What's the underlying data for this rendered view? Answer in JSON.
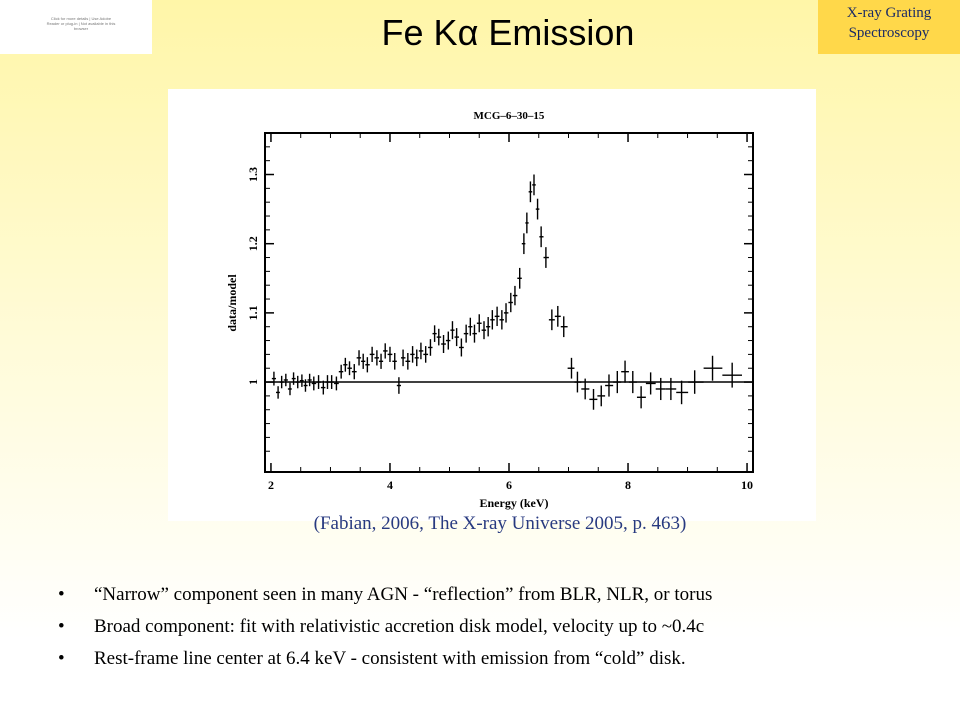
{
  "slide": {
    "title": "Fe Kα Emission",
    "corner_tag_line1": "X-ray Grating",
    "corner_tag_line2": "Spectroscopy",
    "logo_text": "Click for more details | Use Adobe Reader or plug-in | Not available in this browser",
    "citation": "(Fabian, 2006, The X-ray Universe 2005, p. 463)",
    "bullet_symbol": "•",
    "bullets": [
      "“Narrow” component seen in many AGN - “reflection” from BLR, NLR, or torus",
      "Broad component: fit with relativistic accretion disk model, velocity up to ~0.4c",
      "Rest-frame line center at 6.4 keV - consistent with emission from “cold” disk."
    ]
  },
  "chart_data": {
    "type": "scatter",
    "title": "MCG–6–30–15",
    "xlabel": "Energy (keV)",
    "ylabel": "data/model",
    "xlim": [
      1.9,
      10.1
    ],
    "ylim": [
      0.87,
      1.36
    ],
    "xticks": [
      2,
      4,
      6,
      8,
      10
    ],
    "yticks": [
      1,
      1.1,
      1.2,
      1.3
    ],
    "reference_line": 1.0,
    "colors": {
      "marks": "#000000",
      "frame": "#000000"
    },
    "series": [
      {
        "points": [
          {
            "x": 2.05,
            "y": 1.005,
            "ey": 0.01
          },
          {
            "x": 2.12,
            "y": 0.985,
            "ey": 0.009
          },
          {
            "x": 2.18,
            "y": 1.0,
            "ey": 0.009
          },
          {
            "x": 2.25,
            "y": 1.003,
            "ey": 0.009
          },
          {
            "x": 2.32,
            "y": 0.99,
            "ey": 0.009
          },
          {
            "x": 2.38,
            "y": 1.005,
            "ey": 0.009
          },
          {
            "x": 2.45,
            "y": 1.0,
            "ey": 0.009
          },
          {
            "x": 2.52,
            "y": 1.002,
            "ey": 0.009
          },
          {
            "x": 2.58,
            "y": 0.995,
            "ey": 0.009
          },
          {
            "x": 2.65,
            "y": 1.003,
            "ey": 0.009
          },
          {
            "x": 2.72,
            "y": 0.998,
            "ey": 0.01
          },
          {
            "x": 2.8,
            "y": 1.0,
            "ey": 0.01
          },
          {
            "x": 2.88,
            "y": 0.992,
            "ey": 0.01
          },
          {
            "x": 2.95,
            "y": 1.0,
            "ey": 0.01
          },
          {
            "x": 3.02,
            "y": 1.0,
            "ey": 0.01
          },
          {
            "x": 3.1,
            "y": 0.998,
            "ey": 0.01
          },
          {
            "x": 3.18,
            "y": 1.015,
            "ey": 0.01
          },
          {
            "x": 3.25,
            "y": 1.025,
            "ey": 0.01
          },
          {
            "x": 3.32,
            "y": 1.02,
            "ey": 0.01
          },
          {
            "x": 3.4,
            "y": 1.015,
            "ey": 0.011
          },
          {
            "x": 3.48,
            "y": 1.035,
            "ey": 0.011
          },
          {
            "x": 3.55,
            "y": 1.03,
            "ey": 0.011
          },
          {
            "x": 3.62,
            "y": 1.025,
            "ey": 0.011
          },
          {
            "x": 3.7,
            "y": 1.04,
            "ey": 0.011
          },
          {
            "x": 3.78,
            "y": 1.035,
            "ey": 0.011
          },
          {
            "x": 3.85,
            "y": 1.03,
            "ey": 0.011
          },
          {
            "x": 3.92,
            "y": 1.045,
            "ey": 0.011
          },
          {
            "x": 4.0,
            "y": 1.04,
            "ey": 0.011
          },
          {
            "x": 4.08,
            "y": 1.03,
            "ey": 0.012
          },
          {
            "x": 4.15,
            "y": 0.995,
            "ey": 0.012
          },
          {
            "x": 4.22,
            "y": 1.035,
            "ey": 0.012
          },
          {
            "x": 4.3,
            "y": 1.03,
            "ey": 0.012
          },
          {
            "x": 4.38,
            "y": 1.04,
            "ey": 0.012
          },
          {
            "x": 4.45,
            "y": 1.035,
            "ey": 0.012
          },
          {
            "x": 4.52,
            "y": 1.045,
            "ey": 0.012
          },
          {
            "x": 4.6,
            "y": 1.04,
            "ey": 0.012
          },
          {
            "x": 4.68,
            "y": 1.05,
            "ey": 0.012
          },
          {
            "x": 4.75,
            "y": 1.07,
            "ey": 0.012
          },
          {
            "x": 4.82,
            "y": 1.065,
            "ey": 0.012
          },
          {
            "x": 4.9,
            "y": 1.055,
            "ey": 0.013
          },
          {
            "x": 4.98,
            "y": 1.06,
            "ey": 0.013
          },
          {
            "x": 5.05,
            "y": 1.075,
            "ey": 0.013
          },
          {
            "x": 5.12,
            "y": 1.065,
            "ey": 0.013
          },
          {
            "x": 5.2,
            "y": 1.05,
            "ey": 0.013
          },
          {
            "x": 5.28,
            "y": 1.07,
            "ey": 0.013
          },
          {
            "x": 5.35,
            "y": 1.08,
            "ey": 0.013
          },
          {
            "x": 5.42,
            "y": 1.07,
            "ey": 0.013
          },
          {
            "x": 5.5,
            "y": 1.085,
            "ey": 0.013
          },
          {
            "x": 5.58,
            "y": 1.075,
            "ey": 0.013
          },
          {
            "x": 5.65,
            "y": 1.08,
            "ey": 0.014
          },
          {
            "x": 5.72,
            "y": 1.09,
            "ey": 0.014
          },
          {
            "x": 5.8,
            "y": 1.095,
            "ey": 0.014
          },
          {
            "x": 5.88,
            "y": 1.09,
            "ey": 0.014
          },
          {
            "x": 5.95,
            "y": 1.1,
            "ey": 0.014
          },
          {
            "x": 6.03,
            "y": 1.115,
            "ey": 0.014
          },
          {
            "x": 6.1,
            "y": 1.125,
            "ey": 0.014
          },
          {
            "x": 6.18,
            "y": 1.15,
            "ey": 0.015
          },
          {
            "x": 6.25,
            "y": 1.2,
            "ey": 0.015
          },
          {
            "x": 6.3,
            "y": 1.23,
            "ey": 0.015
          },
          {
            "x": 6.36,
            "y": 1.275,
            "ey": 0.015
          },
          {
            "x": 6.42,
            "y": 1.285,
            "ey": 0.015
          },
          {
            "x": 6.48,
            "y": 1.25,
            "ey": 0.015
          },
          {
            "x": 6.54,
            "y": 1.21,
            "ey": 0.015
          },
          {
            "x": 6.62,
            "y": 1.18,
            "ey": 0.015
          },
          {
            "x": 6.72,
            "y": 1.09,
            "ey": 0.015
          },
          {
            "x": 6.82,
            "y": 1.095,
            "ey": 0.015
          },
          {
            "x": 6.92,
            "y": 1.08,
            "ey": 0.015
          },
          {
            "x": 7.05,
            "y": 1.02,
            "ey": 0.015
          },
          {
            "x": 7.15,
            "y": 1.0,
            "ey": 0.015
          },
          {
            "x": 7.28,
            "y": 0.99,
            "ey": 0.015
          },
          {
            "x": 7.42,
            "y": 0.975,
            "ey": 0.015
          },
          {
            "x": 7.55,
            "y": 0.98,
            "ey": 0.015
          },
          {
            "x": 7.68,
            "y": 0.995,
            "ey": 0.016
          },
          {
            "x": 7.82,
            "y": 1.0,
            "ey": 0.016
          },
          {
            "x": 7.95,
            "y": 1.015,
            "ey": 0.016
          },
          {
            "x": 8.08,
            "y": 1.0,
            "ey": 0.016
          },
          {
            "x": 8.22,
            "y": 0.978,
            "ey": 0.016
          },
          {
            "x": 8.38,
            "y": 0.998,
            "ey": 0.016
          },
          {
            "x": 8.55,
            "y": 0.99,
            "ey": 0.016
          },
          {
            "x": 8.72,
            "y": 0.99,
            "ey": 0.016
          },
          {
            "x": 8.9,
            "y": 0.985,
            "ey": 0.017
          },
          {
            "x": 9.12,
            "y": 1.0,
            "ey": 0.017
          },
          {
            "x": 9.42,
            "y": 1.02,
            "ey": 0.018
          },
          {
            "x": 9.75,
            "y": 1.01,
            "ey": 0.018
          }
        ]
      }
    ]
  }
}
